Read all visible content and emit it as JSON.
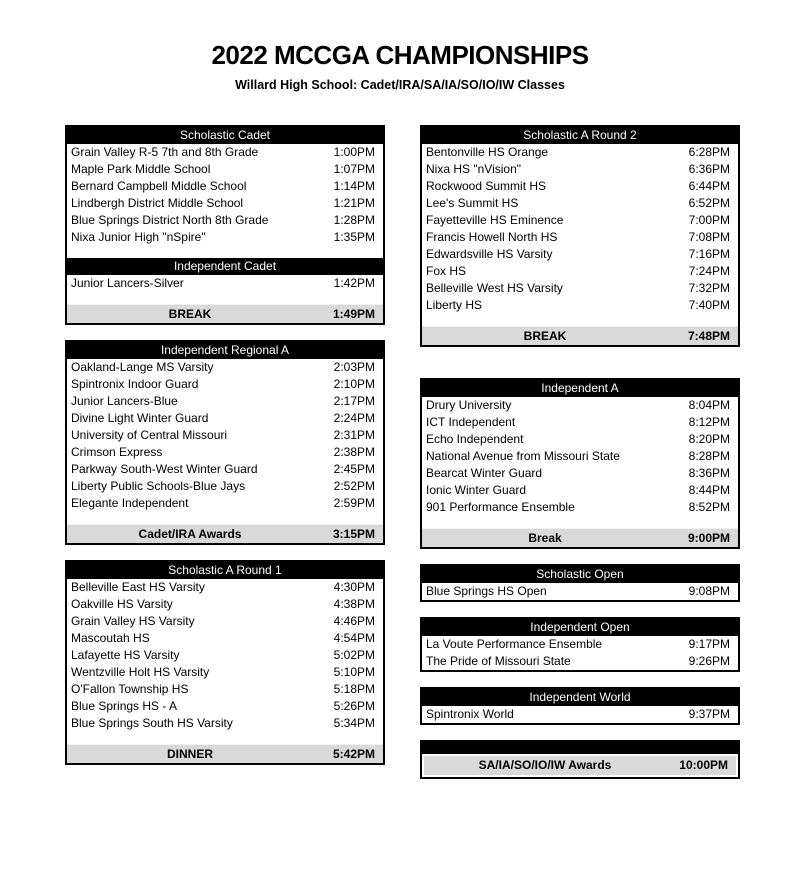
{
  "page": {
    "title": "2022 MCCGA CHAMPIONSHIPS",
    "subtitle": "Willard High School: Cadet/IRA/SA/IA/SO/IO/IW Classes"
  },
  "colors": {
    "header_bg": "#000000",
    "header_text": "#ffffff",
    "milestone_bg": "#d9d9d9",
    "border": "#000000",
    "page_bg": "#ffffff",
    "text": "#000000"
  },
  "columns": {
    "left": [
      {
        "sections": [
          {
            "header": "Scholastic Cadet",
            "rows": [
              {
                "name": "Grain Valley R-5 7th and 8th Grade",
                "time": "1:00PM"
              },
              {
                "name": "Maple Park Middle School",
                "time": "1:07PM"
              },
              {
                "name": "Bernard Campbell Middle School",
                "time": "1:14PM"
              },
              {
                "name": "Lindbergh District Middle School",
                "time": "1:21PM"
              },
              {
                "name": "Blue Springs District North 8th Grade",
                "time": "1:28PM"
              },
              {
                "name": "Nixa Junior High \"nSpire\"",
                "time": "1:35PM"
              }
            ]
          },
          {
            "header": "Independent Cadet",
            "rows": [
              {
                "name": "Junior Lancers-Silver",
                "time": "1:42PM"
              }
            ]
          }
        ],
        "milestone": {
          "label": "BREAK",
          "time": "1:49PM"
        }
      },
      {
        "sections": [
          {
            "header": "Independent Regional A",
            "rows": [
              {
                "name": "Oakland-Lange MS Varsity",
                "time": "2:03PM"
              },
              {
                "name": "Spintronix Indoor Guard",
                "time": "2:10PM"
              },
              {
                "name": "Junior Lancers-Blue",
                "time": "2:17PM"
              },
              {
                "name": "Divine Light Winter Guard",
                "time": "2:24PM"
              },
              {
                "name": "University of Central Missouri",
                "time": "2:31PM"
              },
              {
                "name": "Crimson Express",
                "time": "2:38PM"
              },
              {
                "name": "Parkway South-West Winter Guard",
                "time": "2:45PM"
              },
              {
                "name": "Liberty Public Schools-Blue Jays",
                "time": "2:52PM"
              },
              {
                "name": "Elegante Independent",
                "time": "2:59PM"
              }
            ]
          }
        ],
        "milestone": {
          "label": "Cadet/IRA Awards",
          "time": "3:15PM"
        }
      },
      {
        "sections": [
          {
            "header": "Scholastic A Round 1",
            "rows": [
              {
                "name": "Belleville East HS Varsity",
                "time": "4:30PM"
              },
              {
                "name": "Oakville HS Varsity",
                "time": "4:38PM"
              },
              {
                "name": "Grain Valley HS Varsity",
                "time": "4:46PM"
              },
              {
                "name": "Mascoutah HS",
                "time": "4:54PM"
              },
              {
                "name": "Lafayette HS Varsity",
                "time": "5:02PM"
              },
              {
                "name": "Wentzville Holt HS Varsity",
                "time": "5:10PM"
              },
              {
                "name": "O'Fallon Township HS",
                "time": "5:18PM"
              },
              {
                "name": "Blue Springs HS - A",
                "time": "5:26PM"
              },
              {
                "name": "Blue Springs South HS Varsity",
                "time": "5:34PM"
              }
            ]
          }
        ],
        "milestone": {
          "label": "DINNER",
          "time": "5:42PM"
        }
      }
    ],
    "right": [
      {
        "sections": [
          {
            "header": "Scholastic A Round 2",
            "rows": [
              {
                "name": "Bentonville HS Orange",
                "time": "6:28PM"
              },
              {
                "name": "Nixa HS \"nVision\"",
                "time": "6:36PM"
              },
              {
                "name": "Rockwood Summit HS",
                "time": "6:44PM"
              },
              {
                "name": "Lee's Summit HS",
                "time": "6:52PM"
              },
              {
                "name": "Fayetteville HS Eminence",
                "time": "7:00PM"
              },
              {
                "name": "Francis Howell North HS",
                "time": "7:08PM"
              },
              {
                "name": "Edwardsville HS Varsity",
                "time": "7:16PM"
              },
              {
                "name": "Fox HS",
                "time": "7:24PM"
              },
              {
                "name": "Belleville West HS Varsity",
                "time": "7:32PM"
              },
              {
                "name": "Liberty HS",
                "time": "7:40PM"
              }
            ]
          }
        ],
        "milestone": {
          "label": "BREAK",
          "time": "7:48PM"
        }
      },
      {
        "gap_before": 31,
        "sections": [
          {
            "header": "Independent A",
            "rows": [
              {
                "name": "Drury University",
                "time": "8:04PM"
              },
              {
                "name": "ICT Independent",
                "time": "8:12PM"
              },
              {
                "name": "Echo Independent",
                "time": "8:20PM"
              },
              {
                "name": "National Avenue from Missouri State",
                "time": "8:28PM"
              },
              {
                "name": "Bearcat Winter Guard",
                "time": "8:36PM"
              },
              {
                "name": "Ionic Winter Guard",
                "time": "8:44PM"
              },
              {
                "name": "901 Performance Ensemble",
                "time": "8:52PM"
              }
            ]
          }
        ],
        "milestone": {
          "label": "Break",
          "time": "9:00PM"
        }
      },
      {
        "sections": [
          {
            "header": "Scholastic Open",
            "rows": [
              {
                "name": "Blue Springs HS Open",
                "time": "9:08PM"
              }
            ]
          }
        ]
      },
      {
        "sections": [
          {
            "header": "Independent Open",
            "rows": [
              {
                "name": "La Voute Performance Ensemble",
                "time": "9:17PM"
              },
              {
                "name": "The Pride of Missouri State",
                "time": "9:26PM"
              }
            ]
          }
        ]
      },
      {
        "sections": [
          {
            "header": "Independent World",
            "rows": [
              {
                "name": "Spintronix World",
                "time": "9:37PM"
              }
            ]
          }
        ]
      },
      {
        "variant": "awards",
        "sections": [
          {
            "header": "",
            "rows": []
          }
        ],
        "milestone": {
          "label": "SA/IA/SO/IO/IW Awards",
          "time": "10:00PM"
        }
      }
    ]
  }
}
